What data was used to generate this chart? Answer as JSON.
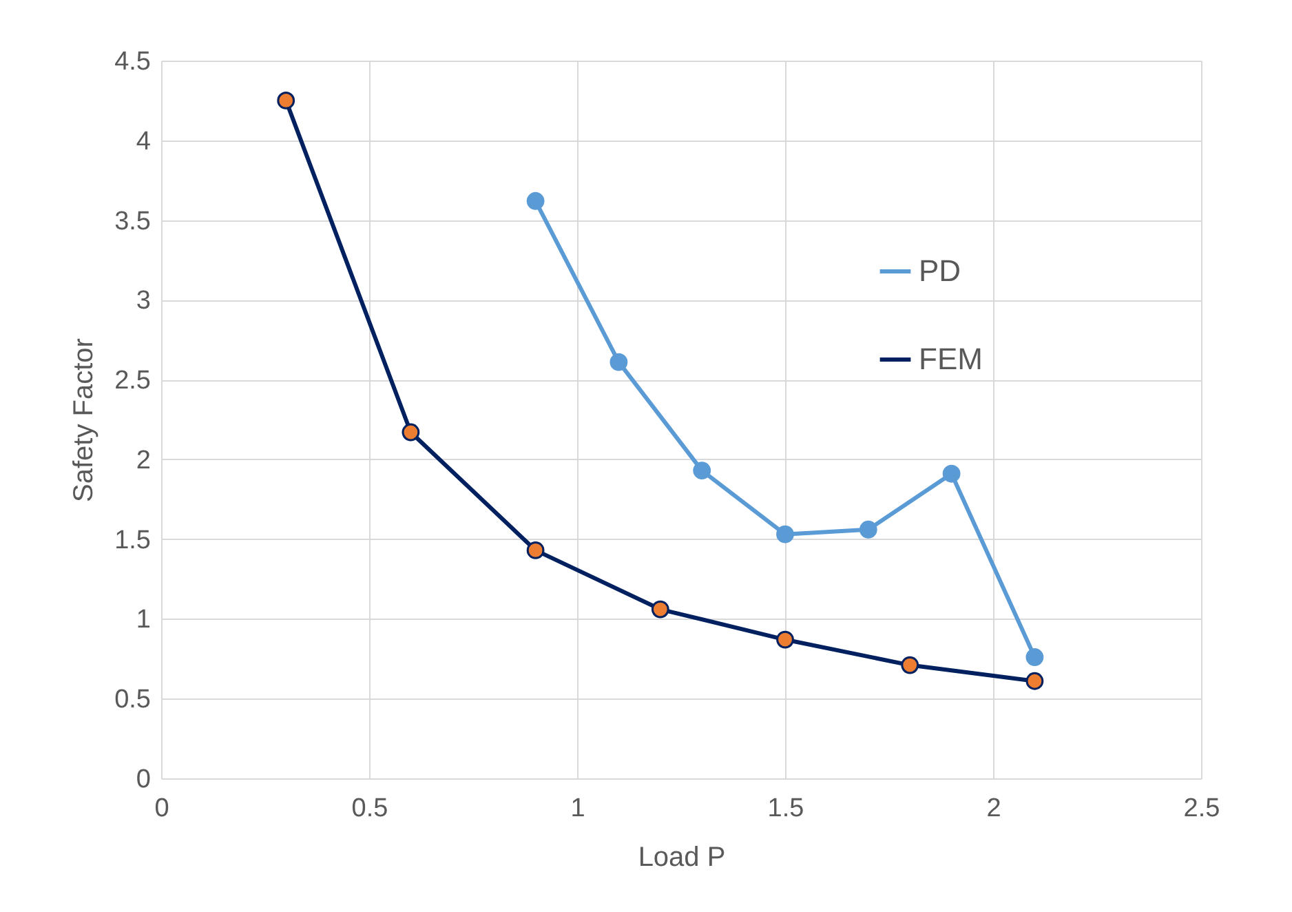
{
  "chart_data": {
    "type": "line",
    "xlabel": "Load P",
    "ylabel": "Safety Factor",
    "xlim": [
      0,
      2.5
    ],
    "xticks": [
      0,
      0.5,
      1,
      1.5,
      2,
      2.5
    ],
    "ylim": [
      0,
      4.5
    ],
    "yticks": [
      0,
      0.5,
      1,
      1.5,
      2,
      2.5,
      3,
      3.5,
      4,
      4.5
    ],
    "grid": true,
    "legend": "right",
    "marker": "circle",
    "line_style": "solid",
    "series": [
      {
        "name": "PD",
        "color": "#5b9bd5",
        "x": [
          0.9,
          1.1,
          1.3,
          1.5,
          1.7,
          1.9,
          2.1
        ],
        "values": [
          3.62,
          2.61,
          1.93,
          1.53,
          1.56,
          1.91,
          0.76
        ]
      },
      {
        "name": "FEM",
        "color": "#002060",
        "colors": [
          "#ed7d31",
          "#ed7d31",
          "#ed7d31",
          "#ed7d31",
          "#ed7d31",
          "#ed7d31",
          "#ed7d31"
        ],
        "x": [
          0.3,
          0.6,
          0.9,
          1.2,
          1.5,
          1.8,
          2.1
        ],
        "values": [
          4.25,
          2.17,
          1.43,
          1.06,
          0.87,
          0.71,
          0.61
        ]
      }
    ]
  }
}
